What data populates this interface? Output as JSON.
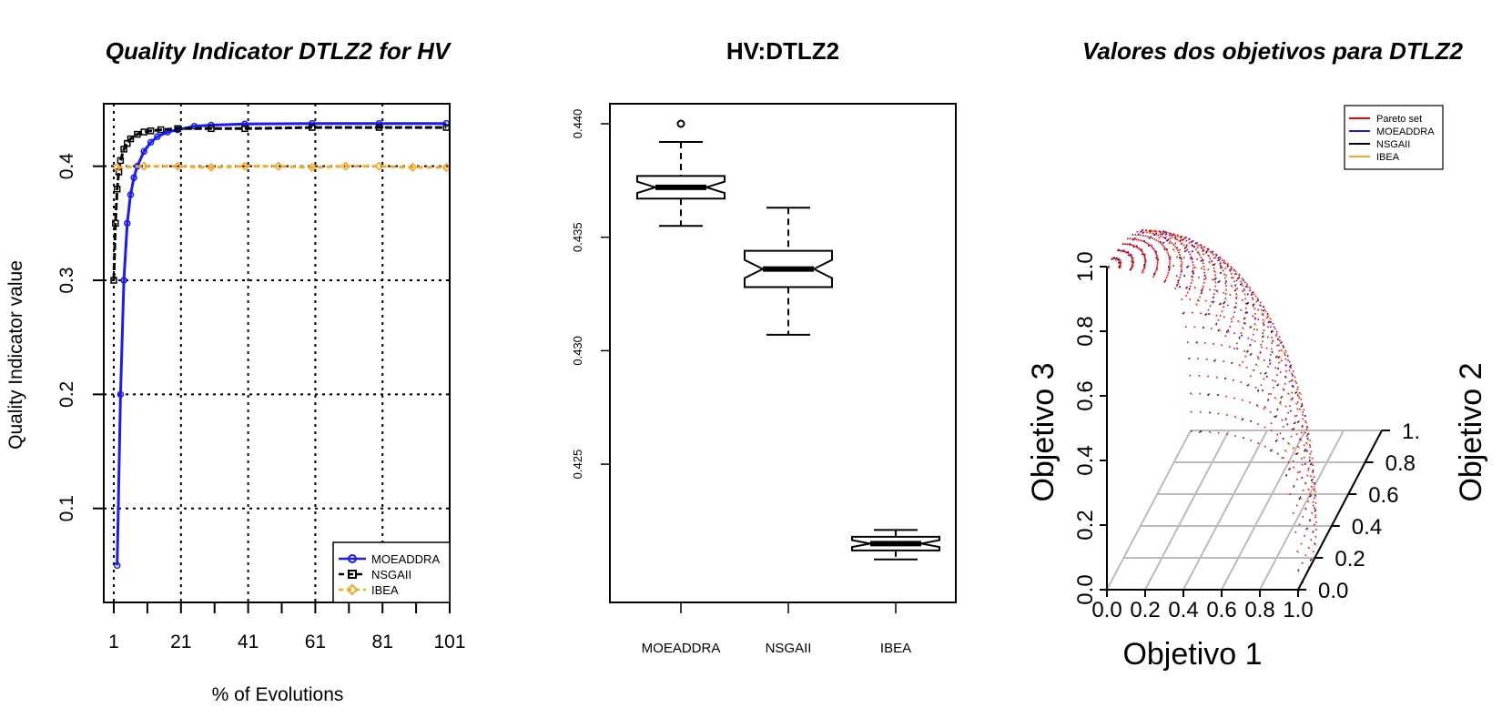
{
  "colors": {
    "moeaddra": "#1a1aff",
    "nsgaii": "#000000",
    "ibea": "#f5a623",
    "pareto": "#ff0000",
    "grid": "#bbbbbb"
  },
  "panel1": {
    "title": "Quality Indicator DTLZ2 for HV",
    "xlabel": "% of Evolutions",
    "ylabel": "Quality Indicator value",
    "legend": [
      "MOEADDRA",
      "NSGAII",
      "IBEA"
    ],
    "legend_position": "bottom-right",
    "grid": true,
    "chart_data": {
      "type": "line",
      "xlim": [
        1,
        101
      ],
      "ylim": [
        0.02,
        0.45
      ],
      "xticks": [
        "1",
        "21",
        "41",
        "61",
        "81",
        "101"
      ],
      "yticks": [
        "0.1",
        "0.2",
        "0.3",
        "0.4"
      ],
      "series": [
        {
          "name": "MOEADDRA",
          "x": [
            2,
            3,
            4,
            5,
            6,
            7,
            8,
            10,
            12,
            14,
            17,
            20,
            25,
            30,
            40,
            60,
            80,
            100
          ],
          "y": [
            0.05,
            0.2,
            0.3,
            0.35,
            0.375,
            0.39,
            0.4,
            0.413,
            0.421,
            0.426,
            0.43,
            0.432,
            0.435,
            0.436,
            0.437,
            0.4375,
            0.4375,
            0.4375
          ]
        },
        {
          "name": "NSGAII",
          "x": [
            1,
            1.5,
            2,
            2.5,
            3,
            4,
            5,
            6,
            8,
            10,
            12,
            15,
            20,
            30,
            40,
            60,
            80,
            100
          ],
          "y": [
            0.3,
            0.35,
            0.38,
            0.395,
            0.405,
            0.415,
            0.42,
            0.424,
            0.428,
            0.43,
            0.431,
            0.432,
            0.433,
            0.433,
            0.433,
            0.434,
            0.434,
            0.434
          ]
        },
        {
          "name": "IBEA",
          "x": [
            2,
            10,
            20,
            30,
            40,
            50,
            60,
            70,
            80,
            90,
            100
          ],
          "y": [
            0.399,
            0.4,
            0.4,
            0.399,
            0.4,
            0.4,
            0.399,
            0.4,
            0.4,
            0.399,
            0.399
          ]
        }
      ]
    }
  },
  "panel2": {
    "title": "HV:DTLZ2",
    "chart_data": {
      "type": "box",
      "categories": [
        "MOEADDRA",
        "NSGAII",
        "IBEA"
      ],
      "ylim": [
        0.4195,
        0.4415
      ],
      "yticks": [
        "0.425",
        "0.430",
        "0.435",
        "0.440"
      ],
      "notched": true,
      "boxes": [
        {
          "name": "MOEADDRA",
          "whisker_low": 0.4355,
          "q1": 0.4367,
          "median": 0.4372,
          "q3": 0.4377,
          "whisker_high": 0.4392,
          "outliers": [
            0.44
          ]
        },
        {
          "name": "NSGAII",
          "whisker_low": 0.4307,
          "q1": 0.4328,
          "median": 0.4336,
          "q3": 0.4344,
          "whisker_high": 0.4363,
          "outliers": []
        },
        {
          "name": "IBEA",
          "whisker_low": 0.4208,
          "q1": 0.4212,
          "median": 0.4215,
          "q3": 0.4218,
          "whisker_high": 0.4221,
          "outliers": []
        }
      ]
    }
  },
  "panel3": {
    "title": "Valores dos objetivos para DTLZ2",
    "xlabel": "Objetivo 1",
    "ylabel": "Objetivo 2",
    "zlabel": "Objetivo 3",
    "legend": [
      "Pareto set",
      "MOEADDRA",
      "NSGAII",
      "IBEA"
    ],
    "legend_position": "top-right",
    "chart_data": {
      "type": "scatter3d",
      "x_ticks": [
        "0.0",
        "0.2",
        "0.4",
        "0.6",
        "0.8",
        "1.0"
      ],
      "y_ticks": [
        "0.0",
        "0.2",
        "0.4",
        "0.6",
        "0.8",
        "1."
      ],
      "z_ticks": [
        "0.0",
        "0.2",
        "0.4",
        "0.6",
        "0.8",
        "1.0"
      ],
      "surface": "unit sphere octant x^2+y^2+z^2=1"
    }
  }
}
